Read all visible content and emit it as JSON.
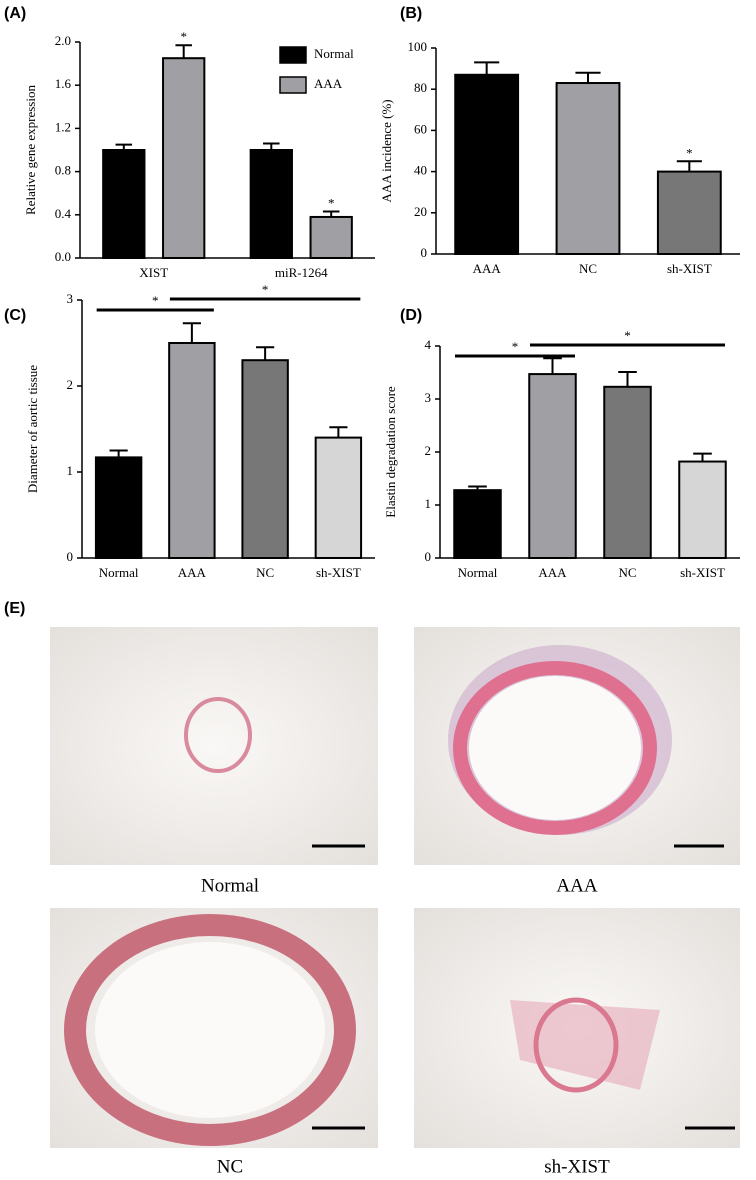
{
  "chart_data": [
    {
      "panel": "(A)",
      "type": "bar",
      "ylabel": "Relative gene expression",
      "categories": [
        "XIST",
        "miR-1264"
      ],
      "series": [
        {
          "name": "Normal",
          "color": "#000000",
          "values": [
            1.0,
            1.0
          ],
          "errors": [
            0.05,
            0.06
          ],
          "significance": [
            null,
            null
          ]
        },
        {
          "name": "AAA",
          "color": "#a0a0a4",
          "values": [
            1.85,
            0.38
          ],
          "errors": [
            0.12,
            0.05
          ],
          "significance": [
            "*",
            "*"
          ]
        }
      ],
      "ylim": [
        0,
        2.0
      ],
      "yticks": [
        {
          "value": 0,
          "label": "0.0"
        },
        {
          "value": 0.4,
          "label": "0.4"
        },
        {
          "value": 0.8,
          "label": "0.8"
        },
        {
          "value": 1.2,
          "label": "1.2"
        },
        {
          "value": 1.6,
          "label": "1.6"
        },
        {
          "value": 2.0,
          "label": "2.0"
        }
      ],
      "legend": "top-right"
    },
    {
      "panel": "(B)",
      "type": "bar",
      "ylabel": "AAA incidence (%)",
      "categories": [
        "AAA",
        "NC",
        "sh-XIST"
      ],
      "values": [
        87,
        83,
        40
      ],
      "errors": [
        6,
        5,
        5
      ],
      "colors": [
        "#000000",
        "#a0a0a4",
        "#777777"
      ],
      "significance": [
        null,
        null,
        "*"
      ],
      "ylim": [
        0,
        100
      ],
      "yticks": [
        0,
        20,
        40,
        60,
        80,
        100
      ]
    },
    {
      "panel": "(C)",
      "type": "bar",
      "ylabel": "Diameter of aortic tissue",
      "categories": [
        "Normal",
        "AAA",
        "NC",
        "sh-XIST"
      ],
      "values": [
        1.17,
        2.5,
        2.3,
        1.4
      ],
      "errors": [
        0.08,
        0.23,
        0.15,
        0.12
      ],
      "colors": [
        "#000000",
        "#a0a0a4",
        "#777777",
        "#d6d6d6"
      ],
      "comparisons": [
        {
          "between": [
            "Normal",
            "AAA"
          ],
          "label": "*"
        },
        {
          "between": [
            "AAA",
            "sh-XIST"
          ],
          "label": "*"
        }
      ],
      "ylim": [
        0,
        3
      ],
      "yticks": [
        0,
        1,
        2,
        3
      ]
    },
    {
      "panel": "(D)",
      "type": "bar",
      "ylabel": "Elastin degradation score",
      "categories": [
        "Normal",
        "AAA",
        "NC",
        "sh-XIST"
      ],
      "values": [
        1.28,
        3.47,
        3.23,
        1.82
      ],
      "errors": [
        0.07,
        0.3,
        0.28,
        0.15
      ],
      "colors": [
        "#000000",
        "#a0a0a4",
        "#777777",
        "#d6d6d6"
      ],
      "comparisons": [
        {
          "between": [
            "Normal",
            "AAA"
          ],
          "label": "*"
        },
        {
          "between": [
            "AAA",
            "sh-XIST"
          ],
          "label": "*"
        }
      ],
      "ylim": [
        0,
        4
      ],
      "yticks": [
        0,
        1,
        2,
        3,
        4
      ]
    }
  ],
  "histology": {
    "panel": "(E)",
    "images": [
      {
        "label": "Normal"
      },
      {
        "label": "AAA"
      },
      {
        "label": "NC"
      },
      {
        "label": "sh-XIST"
      }
    ]
  }
}
